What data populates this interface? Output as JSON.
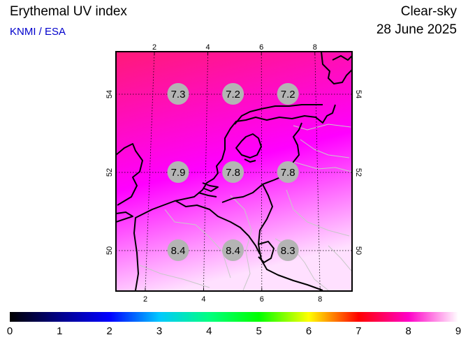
{
  "header": {
    "title": "Erythemal UV index",
    "credit": "KNMI / ESA",
    "mode": "Clear-sky",
    "date": "28 June 2025"
  },
  "colors": {
    "credit": "#0000cc",
    "uv_north": "#ff1a78",
    "uv_mid": "#ff00ff",
    "uv_south": "#ffe0ff",
    "marker": "#b4b4b4"
  },
  "map": {
    "lon_ticks": [
      2,
      4,
      6,
      8
    ],
    "lat_ticks": [
      50,
      52,
      54
    ],
    "stations": [
      {
        "lon": 3,
        "lat": 54,
        "value": "7.3"
      },
      {
        "lon": 5,
        "lat": 54,
        "value": "7.2"
      },
      {
        "lon": 7,
        "lat": 54,
        "value": "7.2"
      },
      {
        "lon": 3,
        "lat": 52,
        "value": "7.9"
      },
      {
        "lon": 5,
        "lat": 52,
        "value": "7.8"
      },
      {
        "lon": 7,
        "lat": 52,
        "value": "7.8"
      },
      {
        "lon": 3,
        "lat": 50,
        "value": "8.4"
      },
      {
        "lon": 5,
        "lat": 50,
        "value": "8.4"
      },
      {
        "lon": 7,
        "lat": 50,
        "value": "8.3"
      }
    ]
  },
  "colorbar": {
    "labels": [
      "0",
      "1",
      "2",
      "3",
      "4",
      "5",
      "6",
      "7",
      "8",
      "9"
    ],
    "stops": [
      "#000000",
      "#000088",
      "#0000ff",
      "#00c8ff",
      "#00ff80",
      "#00ff00",
      "#ffff00",
      "#ff0000",
      "#ff00c8",
      "#ffffff"
    ]
  }
}
